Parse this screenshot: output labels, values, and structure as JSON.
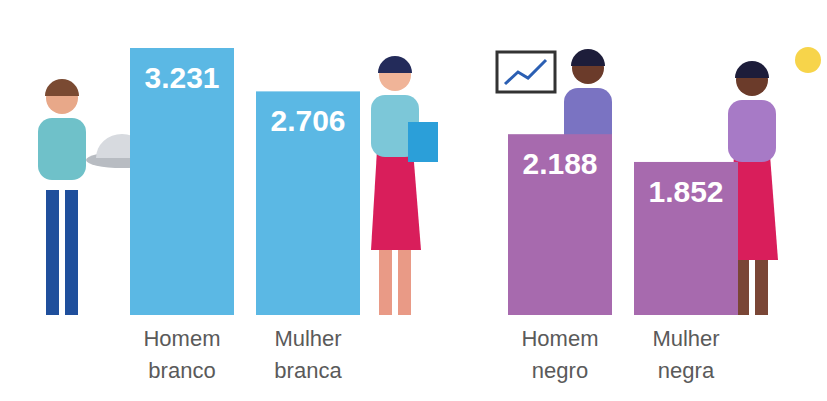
{
  "chart_data": {
    "type": "bar",
    "categories": [
      "Homem branco",
      "Mulher branca",
      "Homem negro",
      "Mulher negra"
    ],
    "values": [
      3231,
      2706,
      2188,
      1852
    ],
    "value_labels": [
      "3.231",
      "2.706",
      "2.188",
      "1.852"
    ],
    "colors": [
      "#5bb8e4",
      "#5bb8e4",
      "#a76aae",
      "#a76aae"
    ],
    "ylim": [
      0,
      3231
    ],
    "data_labels": true,
    "tick_labels": "x"
  }
}
